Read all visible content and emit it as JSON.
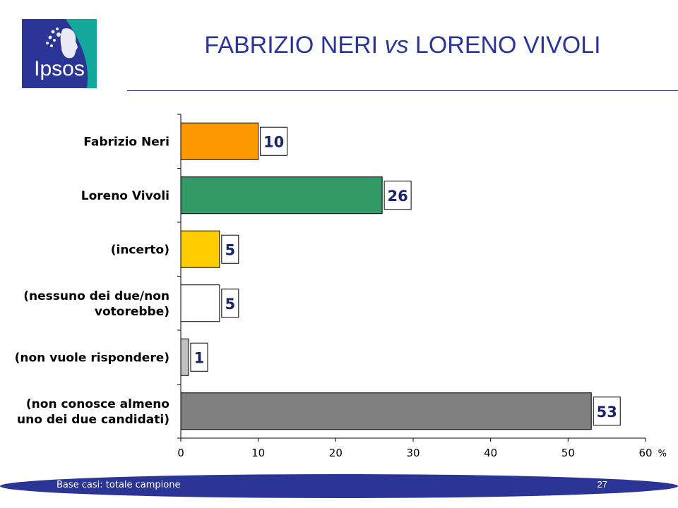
{
  "header": {
    "logo_text": "Ipsos",
    "title_part1": "FABRIZIO NERI ",
    "title_vs": "vs",
    "title_part2": " LORENO VIVOLI"
  },
  "colors": {
    "title": "#2b3595",
    "logo_blue": "#2b3595",
    "logo_teal": "#14a79b",
    "footer": "#2b3595"
  },
  "chart_data": {
    "type": "bar",
    "orientation": "horizontal",
    "title": "",
    "xlabel": "",
    "ylabel": "",
    "unit": "%",
    "xlim": [
      0,
      60
    ],
    "xticks": [
      "0",
      "10",
      "20",
      "30",
      "40",
      "50",
      "60"
    ],
    "grid": false,
    "categories": [
      [
        "Fabrizio Neri"
      ],
      [
        "Loreno Vivoli"
      ],
      [
        "(incerto)"
      ],
      [
        "(nessuno dei due/non",
        "votorebbe)"
      ],
      [
        "(non vuole rispondere)"
      ],
      [
        "(non conosce almeno",
        "uno dei due candidati)"
      ]
    ],
    "values": [
      10,
      26,
      5,
      5,
      1,
      53
    ],
    "value_labels": [
      "10",
      "26",
      "5",
      "5",
      "1",
      "53"
    ],
    "bar_colors": [
      "#ff9900",
      "#339966",
      "#ffcc00",
      "#ffffff",
      "#c0c0c0",
      "#808080"
    ]
  },
  "footer": {
    "base_text": "Base casi: totale campione",
    "page_number": "27"
  }
}
